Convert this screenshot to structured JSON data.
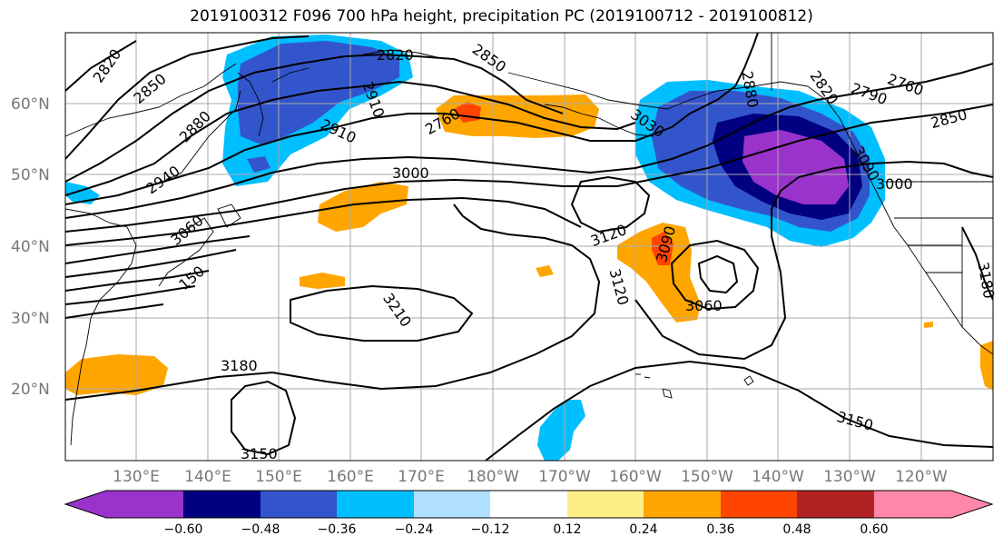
{
  "title": "2019100312 F096 700 hPa height, precipitation PC (2019100712 - 2019100812)",
  "lat_labels": [
    "60°N",
    "50°N",
    "40°N",
    "30°N",
    "20°N"
  ],
  "lon_labels": [
    "130°E",
    "140°E",
    "150°E",
    "160°E",
    "170°E",
    "180°W",
    "170°W",
    "160°W",
    "150°W",
    "140°W",
    "130°W",
    "120°W"
  ],
  "contour_labels": [
    "2820",
    "2850",
    "2880",
    "2940",
    "3060",
    "150",
    "2820",
    "2850",
    "2910",
    "2910",
    "2760",
    "3000",
    "3030",
    "2880",
    "2820",
    "2790",
    "2760",
    "2850",
    "3090",
    "3000",
    "3120",
    "3090",
    "3120",
    "3060",
    "3210",
    "3180",
    "3150",
    "3150",
    "3180"
  ],
  "colorbar": {
    "ticks": [
      "−0.60",
      "−0.48",
      "−0.36",
      "−0.24",
      "−0.12",
      "0.12",
      "0.24",
      "0.36",
      "0.48",
      "0.60"
    ],
    "colors": [
      "#9933cc",
      "#000080",
      "#3355cc",
      "#00bfff",
      "#b0e0ff",
      "#ffffff",
      "#ffee88",
      "#ffa500",
      "#ff4500",
      "#b22222",
      "#ff88aa"
    ]
  }
}
